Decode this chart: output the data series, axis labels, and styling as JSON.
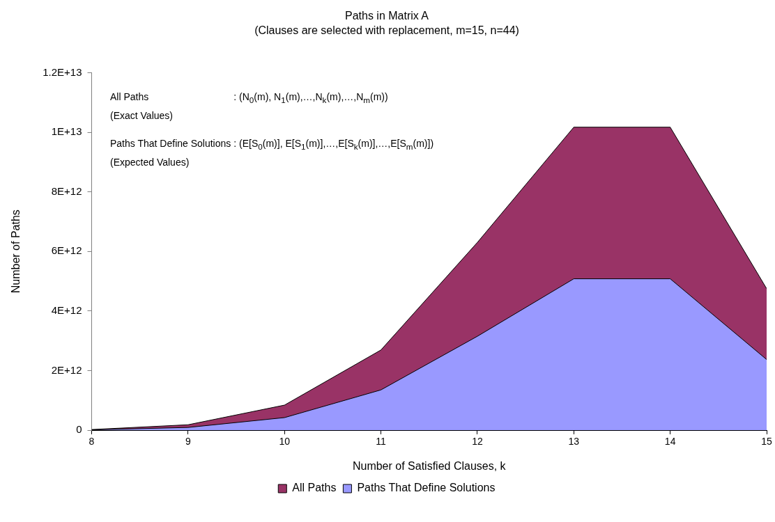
{
  "chart_data": {
    "type": "area",
    "title": "Paths in Matrix A",
    "subtitle": "(Clauses are selected with replacement, m=15, n=44)",
    "xlabel": "Number of Satisfied Clauses, k",
    "ylabel": "Number of Paths",
    "x": [
      8,
      9,
      10,
      11,
      12,
      13,
      14,
      15
    ],
    "series": [
      {
        "name": "All Paths",
        "color": "#993366",
        "values": [
          20000000000.0,
          180000000000.0,
          840000000000.0,
          2690000000000.0,
          6300000000000.0,
          10170000000000.0,
          10170000000000.0,
          4750000000000.0
        ]
      },
      {
        "name": "Paths That Define Solutions",
        "color": "#9999ff",
        "values": [
          10000000000.0,
          90000000000.0,
          420000000000.0,
          1350000000000.0,
          3150000000000.0,
          5080000000000.0,
          5080000000000.0,
          2370000000000.0
        ]
      }
    ],
    "xlim": [
      8,
      15
    ],
    "xticks": [
      8,
      9,
      10,
      11,
      12,
      13,
      14,
      15
    ],
    "ylim": [
      0,
      12000000000000.0
    ],
    "yticks": [
      {
        "value": 0,
        "label": "0"
      },
      {
        "value": 2000000000000.0,
        "label": "2E+12"
      },
      {
        "value": 4000000000000.0,
        "label": "4E+12"
      },
      {
        "value": 6000000000000.0,
        "label": "6E+12"
      },
      {
        "value": 8000000000000.0,
        "label": "8E+12"
      },
      {
        "value": 10000000000000.0,
        "label": "1E+13"
      },
      {
        "value": 12000000000000.0,
        "label": "1.2E+13"
      }
    ],
    "grid": false,
    "legend": "bottom",
    "annotations": [
      "All Paths",
      ": (N$_{0}$(m), N$_{1}$(m),…,N$_{k}$(m),…,N$_{m}$(m))",
      "(Exact Values)",
      "Paths That Define Solutions",
      ": (E[S$_{0}$(m)], E[S$_{1}$(m)],…,E[S$_{k}$(m)],…,E[S$_{m}$(m)])",
      "(Expected Values)"
    ]
  }
}
